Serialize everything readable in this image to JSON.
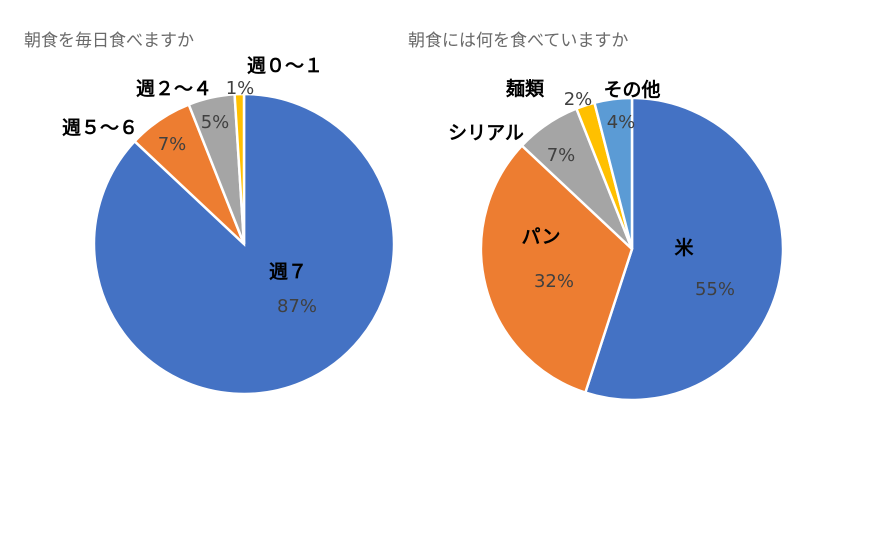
{
  "chart_data": [
    {
      "type": "pie",
      "title": "朝食を毎日食べますか",
      "categories": [
        "週７",
        "週５〜６",
        "週２〜４",
        "週０〜１"
      ],
      "values": [
        87,
        7,
        5,
        1
      ],
      "labels": [
        "87%",
        "7%",
        "5%",
        "1%"
      ],
      "colors": [
        "#4472C4",
        "#ED7D31",
        "#A5A5A5",
        "#FFC000"
      ]
    },
    {
      "type": "pie",
      "title": "朝食には何を食べていますか",
      "categories": [
        "米",
        "パン",
        "シリアル",
        "麺類",
        "その他"
      ],
      "values": [
        55,
        32,
        7,
        2,
        4
      ],
      "labels": [
        "55%",
        "32%",
        "7%",
        "2%",
        "4%"
      ],
      "colors": [
        "#4472C4",
        "#ED7D31",
        "#A5A5A5",
        "#FFC000",
        "#5B9BD5"
      ]
    }
  ]
}
